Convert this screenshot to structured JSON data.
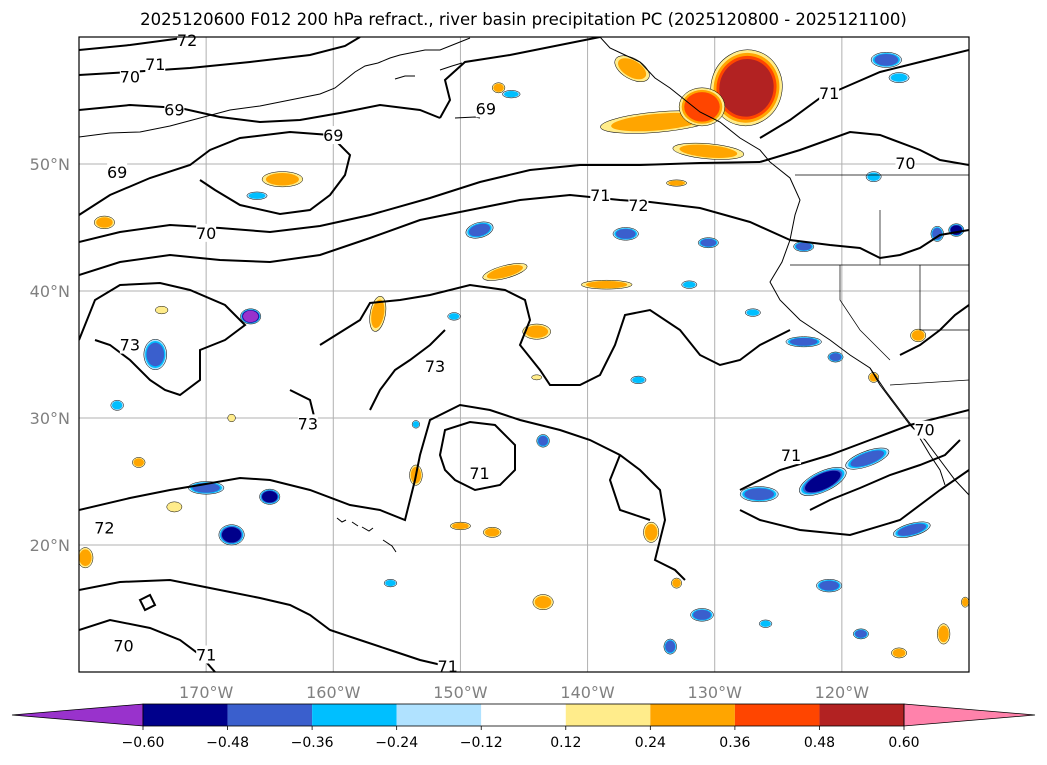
{
  "title": "2025120600 F012 200 hPa refract., river basin precipitation PC (2025120800 - 2025121100)",
  "colors": {
    "contour": "#000000",
    "grid": "#b0b0b0",
    "tick_text": "#808080",
    "coast": "#000000"
  },
  "chart_data": {
    "type": "map",
    "projection": "lat-lon",
    "lon_range": [
      -180,
      -110
    ],
    "lat_range": [
      10,
      60
    ],
    "lat_ticks": [
      {
        "value": 50,
        "label": "50°N"
      },
      {
        "value": 40,
        "label": "40°N"
      },
      {
        "value": 30,
        "label": "30°N"
      },
      {
        "value": 20,
        "label": "20°N"
      }
    ],
    "lon_ticks": [
      {
        "value": -170,
        "label": "170°W"
      },
      {
        "value": -160,
        "label": "160°W"
      },
      {
        "value": -150,
        "label": "150°W"
      },
      {
        "value": -140,
        "label": "140°W"
      },
      {
        "value": -130,
        "label": "130°W"
      },
      {
        "value": -120,
        "label": "120°W"
      }
    ],
    "contour_labels": [
      {
        "text": "72",
        "lon": -171.5,
        "lat": 59.7
      },
      {
        "text": "71",
        "lon": -174.0,
        "lat": 57.8
      },
      {
        "text": "70",
        "lon": -176.0,
        "lat": 56.8
      },
      {
        "text": "69",
        "lon": -172.5,
        "lat": 54.2
      },
      {
        "text": "69",
        "lon": -160.0,
        "lat": 52.2
      },
      {
        "text": "69",
        "lon": -148.0,
        "lat": 54.3
      },
      {
        "text": "69",
        "lon": -177.0,
        "lat": 49.3
      },
      {
        "text": "70",
        "lon": -170.0,
        "lat": 44.5
      },
      {
        "text": "71",
        "lon": -139.0,
        "lat": 47.5
      },
      {
        "text": "72",
        "lon": -136.0,
        "lat": 46.7
      },
      {
        "text": "71",
        "lon": -121.0,
        "lat": 55.5
      },
      {
        "text": "70",
        "lon": -115.0,
        "lat": 50.0
      },
      {
        "text": "73",
        "lon": -176.0,
        "lat": 35.7
      },
      {
        "text": "73",
        "lon": -162.0,
        "lat": 29.5
      },
      {
        "text": "73",
        "lon": -152.0,
        "lat": 34.0
      },
      {
        "text": "71",
        "lon": -148.5,
        "lat": 25.6
      },
      {
        "text": "71",
        "lon": -124.0,
        "lat": 27.0
      },
      {
        "text": "70",
        "lon": -113.5,
        "lat": 29.0
      },
      {
        "text": "72",
        "lon": -178.0,
        "lat": 21.3
      },
      {
        "text": "70",
        "lon": -176.5,
        "lat": 12.0
      },
      {
        "text": "71",
        "lon": -170.0,
        "lat": 11.3
      },
      {
        "text": "71",
        "lon": -151.0,
        "lat": 10.4
      }
    ],
    "colorbar": {
      "levels": [
        "−0.60",
        "−0.48",
        "−0.36",
        "−0.24",
        "−0.12",
        "0.12",
        "0.24",
        "0.36",
        "0.48",
        "0.60"
      ],
      "colors": [
        "#9932cc",
        "#00008b",
        "#3a5fcd",
        "#00bfff",
        "#b0e2ff",
        "#ffffff",
        "#ffec8b",
        "#ffa500",
        "#ff4500",
        "#b22222",
        "#ff82ab"
      ],
      "extend": "both"
    },
    "precip_blobs": [
      {
        "lon": -127.5,
        "lat": 56.0,
        "rx": 2.8,
        "ry": 3.0,
        "level": 4,
        "rot": 15
      },
      {
        "lon": -134.5,
        "lat": 53.3,
        "rx": 4.5,
        "ry": 0.8,
        "level": 2,
        "rot": -5
      },
      {
        "lon": -131.0,
        "lat": 54.5,
        "rx": 1.8,
        "ry": 1.5,
        "level": 3,
        "rot": 0
      },
      {
        "lon": -130.5,
        "lat": 51.0,
        "rx": 2.8,
        "ry": 0.6,
        "level": 2,
        "rot": 5
      },
      {
        "lon": -136.5,
        "lat": 57.5,
        "rx": 1.5,
        "ry": 0.8,
        "level": 2,
        "rot": 30
      },
      {
        "lon": -164.0,
        "lat": 48.8,
        "rx": 1.6,
        "ry": 0.6,
        "level": 2,
        "rot": 0
      },
      {
        "lon": -178.0,
        "lat": 45.4,
        "rx": 0.8,
        "ry": 0.5,
        "level": 2,
        "rot": 0
      },
      {
        "lon": -146.5,
        "lat": 41.5,
        "rx": 1.8,
        "ry": 0.5,
        "level": 2,
        "rot": -15
      },
      {
        "lon": -138.5,
        "lat": 40.5,
        "rx": 2.0,
        "ry": 0.35,
        "level": 2,
        "rot": 0
      },
      {
        "lon": -156.5,
        "lat": 38.2,
        "rx": 0.6,
        "ry": 1.4,
        "level": 2,
        "rot": 10
      },
      {
        "lon": -144.0,
        "lat": 36.8,
        "rx": 1.1,
        "ry": 0.6,
        "level": 2,
        "rot": 0
      },
      {
        "lon": -173.5,
        "lat": 38.5,
        "rx": 0.5,
        "ry": 0.3,
        "level": 1,
        "rot": 0
      },
      {
        "lon": -153.5,
        "lat": 25.5,
        "rx": 0.5,
        "ry": 0.8,
        "level": 2,
        "rot": 0
      },
      {
        "lon": -147.5,
        "lat": 21.0,
        "rx": 0.7,
        "ry": 0.4,
        "level": 2,
        "rot": 0
      },
      {
        "lon": -150.0,
        "lat": 21.5,
        "rx": 0.8,
        "ry": 0.3,
        "level": 2,
        "rot": 0
      },
      {
        "lon": -135.0,
        "lat": 21.0,
        "rx": 0.6,
        "ry": 0.8,
        "level": 2,
        "rot": 0
      },
      {
        "lon": -175.3,
        "lat": 26.5,
        "rx": 0.5,
        "ry": 0.4,
        "level": 2,
        "rot": 0
      },
      {
        "lon": -172.5,
        "lat": 23.0,
        "rx": 0.6,
        "ry": 0.4,
        "level": 1,
        "rot": 0
      },
      {
        "lon": -179.5,
        "lat": 19.0,
        "rx": 0.6,
        "ry": 0.8,
        "level": 2,
        "rot": 0
      },
      {
        "lon": -143.5,
        "lat": 15.5,
        "rx": 0.8,
        "ry": 0.6,
        "level": 2,
        "rot": 0
      },
      {
        "lon": -112.0,
        "lat": 13.0,
        "rx": 0.5,
        "ry": 0.8,
        "level": 2,
        "rot": 0
      },
      {
        "lon": -110.3,
        "lat": 15.5,
        "rx": 0.3,
        "ry": 0.4,
        "level": 2,
        "rot": 0
      },
      {
        "lon": -133.0,
        "lat": 48.5,
        "rx": 0.8,
        "ry": 0.25,
        "level": 2,
        "rot": 0
      },
      {
        "lon": -147.0,
        "lat": 56.0,
        "rx": 0.5,
        "ry": 0.4,
        "level": 2,
        "rot": 0
      },
      {
        "lon": -117.5,
        "lat": 33.2,
        "rx": 0.4,
        "ry": 0.4,
        "level": 2,
        "rot": 0
      },
      {
        "lon": -114.0,
        "lat": 36.5,
        "rx": 0.6,
        "ry": 0.5,
        "level": 2,
        "rot": 0
      },
      {
        "lon": -133.0,
        "lat": 17.0,
        "rx": 0.4,
        "ry": 0.4,
        "level": 2,
        "rot": 0
      },
      {
        "lon": -115.5,
        "lat": 11.5,
        "rx": 0.6,
        "ry": 0.4,
        "level": 2,
        "rot": 0
      },
      {
        "lon": -168.0,
        "lat": 30.0,
        "rx": 0.3,
        "ry": 0.3,
        "level": 1,
        "rot": 0
      },
      {
        "lon": -144.0,
        "lat": 33.2,
        "rx": 0.4,
        "ry": 0.2,
        "level": 1,
        "rot": 0
      },
      {
        "lon": -168.0,
        "lat": 20.8,
        "rx": 1.0,
        "ry": 0.8,
        "level": -4,
        "rot": 0
      },
      {
        "lon": -170.0,
        "lat": 24.5,
        "rx": 1.4,
        "ry": 0.5,
        "level": -3,
        "rot": 0
      },
      {
        "lon": -165.0,
        "lat": 23.8,
        "rx": 0.8,
        "ry": 0.6,
        "level": -4,
        "rot": 0
      },
      {
        "lon": -174.0,
        "lat": 35.0,
        "rx": 0.9,
        "ry": 1.2,
        "level": -3,
        "rot": 0
      },
      {
        "lon": -166.5,
        "lat": 38.0,
        "rx": 0.8,
        "ry": 0.6,
        "level": -5,
        "rot": 0
      },
      {
        "lon": -148.5,
        "lat": 44.8,
        "rx": 1.1,
        "ry": 0.6,
        "level": -3,
        "rot": -15
      },
      {
        "lon": -137.0,
        "lat": 44.5,
        "rx": 1.0,
        "ry": 0.5,
        "level": -3,
        "rot": 0
      },
      {
        "lon": -130.5,
        "lat": 43.8,
        "rx": 0.8,
        "ry": 0.4,
        "level": -3,
        "rot": 0
      },
      {
        "lon": -123.0,
        "lat": 43.5,
        "rx": 0.8,
        "ry": 0.4,
        "level": -3,
        "rot": 0
      },
      {
        "lon": -177.0,
        "lat": 31.0,
        "rx": 0.5,
        "ry": 0.4,
        "level": -2,
        "rot": 0
      },
      {
        "lon": -121.5,
        "lat": 25.0,
        "rx": 2.0,
        "ry": 0.8,
        "level": -4,
        "rot": -25
      },
      {
        "lon": -118.0,
        "lat": 26.8,
        "rx": 1.8,
        "ry": 0.6,
        "level": -3,
        "rot": -20
      },
      {
        "lon": -126.5,
        "lat": 24.0,
        "rx": 1.5,
        "ry": 0.6,
        "level": -3,
        "rot": 0
      },
      {
        "lon": -114.5,
        "lat": 21.2,
        "rx": 1.5,
        "ry": 0.5,
        "level": -3,
        "rot": -15
      },
      {
        "lon": -121.0,
        "lat": 16.8,
        "rx": 1.0,
        "ry": 0.5,
        "level": -3,
        "rot": 0
      },
      {
        "lon": -123.0,
        "lat": 36.0,
        "rx": 1.4,
        "ry": 0.4,
        "level": -3,
        "rot": 0
      },
      {
        "lon": -120.5,
        "lat": 34.8,
        "rx": 0.6,
        "ry": 0.4,
        "level": -3,
        "rot": 0
      },
      {
        "lon": -127.0,
        "lat": 38.3,
        "rx": 0.6,
        "ry": 0.3,
        "level": -2,
        "rot": 0
      },
      {
        "lon": -112.5,
        "lat": 44.5,
        "rx": 0.5,
        "ry": 0.6,
        "level": -3,
        "rot": 0
      },
      {
        "lon": -111.0,
        "lat": 44.8,
        "rx": 0.6,
        "ry": 0.5,
        "level": -4,
        "rot": 0
      },
      {
        "lon": -117.5,
        "lat": 49.0,
        "rx": 0.6,
        "ry": 0.4,
        "level": -2,
        "rot": 0
      },
      {
        "lon": -115.5,
        "lat": 56.8,
        "rx": 0.8,
        "ry": 0.4,
        "level": -2,
        "rot": 0
      },
      {
        "lon": -116.5,
        "lat": 58.2,
        "rx": 1.2,
        "ry": 0.6,
        "level": -3,
        "rot": 0
      },
      {
        "lon": -153.5,
        "lat": 29.5,
        "rx": 0.3,
        "ry": 0.3,
        "level": -2,
        "rot": 0
      },
      {
        "lon": -143.5,
        "lat": 28.2,
        "rx": 0.5,
        "ry": 0.5,
        "level": -3,
        "rot": 0
      },
      {
        "lon": -132.0,
        "lat": 40.5,
        "rx": 0.6,
        "ry": 0.3,
        "level": -2,
        "rot": 0
      },
      {
        "lon": -131.0,
        "lat": 14.5,
        "rx": 0.9,
        "ry": 0.5,
        "level": -3,
        "rot": 0
      },
      {
        "lon": -118.5,
        "lat": 13.0,
        "rx": 0.6,
        "ry": 0.4,
        "level": -3,
        "rot": 0
      },
      {
        "lon": -126.0,
        "lat": 13.8,
        "rx": 0.5,
        "ry": 0.3,
        "level": -2,
        "rot": 0
      },
      {
        "lon": -166.0,
        "lat": 47.5,
        "rx": 0.8,
        "ry": 0.3,
        "level": -2,
        "rot": 0
      },
      {
        "lon": -146.0,
        "lat": 55.5,
        "rx": 0.7,
        "ry": 0.3,
        "level": -2,
        "rot": 0
      },
      {
        "lon": -136.0,
        "lat": 33.0,
        "rx": 0.6,
        "ry": 0.3,
        "level": -2,
        "rot": 0
      },
      {
        "lon": -155.5,
        "lat": 17.0,
        "rx": 0.5,
        "ry": 0.3,
        "level": -2,
        "rot": 0
      },
      {
        "lon": -150.5,
        "lat": 38.0,
        "rx": 0.5,
        "ry": 0.3,
        "level": -2,
        "rot": 0
      },
      {
        "lon": -133.5,
        "lat": 12.0,
        "rx": 0.5,
        "ry": 0.6,
        "level": -3,
        "rot": 0
      }
    ]
  }
}
